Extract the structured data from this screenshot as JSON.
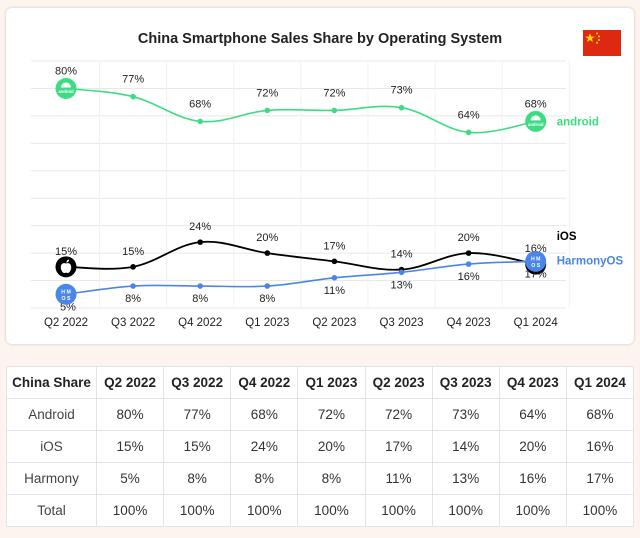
{
  "chart_data": {
    "type": "line",
    "title": "China Smartphone Sales Share by Operating System",
    "categories": [
      "Q2 2022",
      "Q3 2022",
      "Q4 2022",
      "Q1 2023",
      "Q2 2023",
      "Q3 2023",
      "Q4 2023",
      "Q1 2024"
    ],
    "series": [
      {
        "name": "android",
        "color": "#3ddc84",
        "values": [
          80,
          77,
          68,
          72,
          72,
          73,
          64,
          68
        ],
        "labels": [
          "80%",
          "77%",
          "68%",
          "72%",
          "72%",
          "73%",
          "64%",
          "68%"
        ],
        "icon": "android-icon",
        "icon_text": "android"
      },
      {
        "name": "iOS",
        "color": "#000000",
        "values": [
          15,
          15,
          24,
          20,
          17,
          14,
          20,
          16
        ],
        "labels": [
          "15%",
          "15%",
          "24%",
          "20%",
          "17%",
          "14%",
          "20%",
          "16%"
        ],
        "icon": "apple-icon"
      },
      {
        "name": "HarmonyOS",
        "color": "#4a86e8",
        "values": [
          5,
          8,
          8,
          8,
          11,
          13,
          16,
          17
        ],
        "labels": [
          "5%",
          "8%",
          "8%",
          "8%",
          "11%",
          "13%",
          "16%",
          "17%"
        ],
        "icon": "harmonyos-icon",
        "icon_text": "H M O S"
      }
    ],
    "ylim": [
      0,
      90
    ],
    "grid": true,
    "legend_placement": "right end of each line",
    "flag_icon": "china-flag-icon"
  },
  "table": {
    "headers": [
      "China Share",
      "Q2 2022",
      "Q3 2022",
      "Q4 2022",
      "Q1 2023",
      "Q2 2023",
      "Q3 2023",
      "Q4 2023",
      "Q1 2024"
    ],
    "rows": [
      [
        "Android",
        "80%",
        "77%",
        "68%",
        "72%",
        "72%",
        "73%",
        "64%",
        "68%"
      ],
      [
        "iOS",
        "15%",
        "15%",
        "24%",
        "20%",
        "17%",
        "14%",
        "20%",
        "16%"
      ],
      [
        "Harmony",
        "5%",
        "8%",
        "8%",
        "8%",
        "11%",
        "13%",
        "16%",
        "17%"
      ],
      [
        "Total",
        "100%",
        "100%",
        "100%",
        "100%",
        "100%",
        "100%",
        "100%",
        "100%"
      ]
    ]
  }
}
